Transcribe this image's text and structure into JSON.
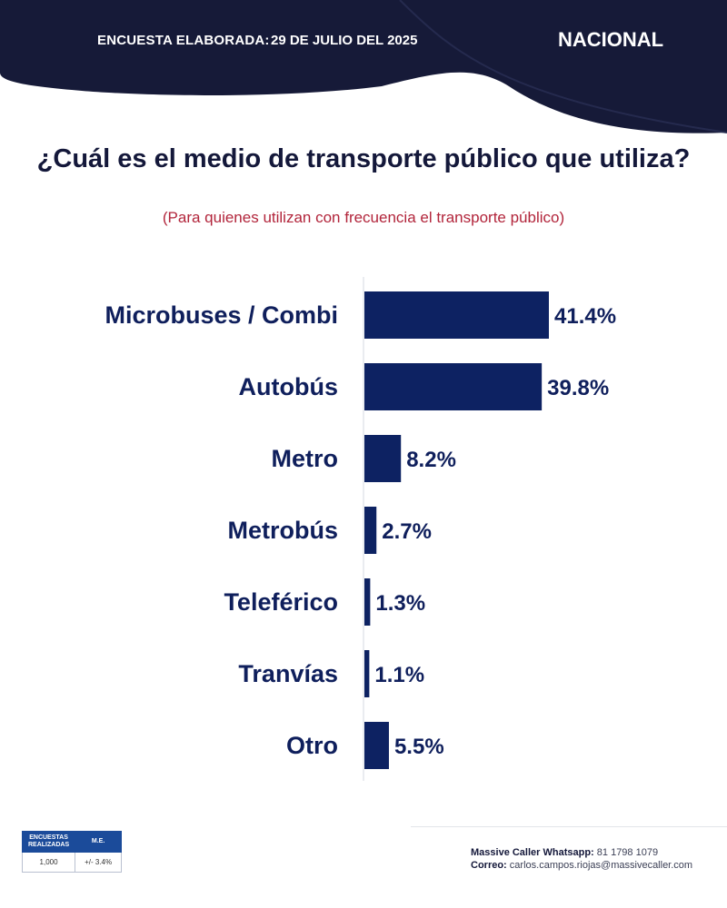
{
  "header": {
    "survey_label": "ENCUESTA ELABORADA:",
    "survey_date": "29 DE JULIO DEL 2025",
    "scope": "NACIONAL"
  },
  "question": {
    "title": "¿Cuál es el medio de transporte público que utiliza?",
    "subtitle": "(Para quienes utilizan con frecuencia el transporte público)"
  },
  "chart_data": {
    "type": "bar",
    "orientation": "horizontal",
    "title": "¿Cuál es el medio de transporte público que utiliza?",
    "categories": [
      "Microbuses / Combi",
      "Autobús",
      "Metro",
      "Metrobús",
      "Teleférico",
      "Tranvías",
      "Otro"
    ],
    "values": [
      41.4,
      39.8,
      8.2,
      2.7,
      1.3,
      1.1,
      5.5
    ],
    "value_labels": [
      "41.4%",
      "39.8%",
      "8.2%",
      "2.7%",
      "1.3%",
      "1.1%",
      "5.5%"
    ],
    "unit": "%",
    "xlim": [
      0,
      41.4
    ],
    "bar_color": "#0d2262"
  },
  "stats_table": {
    "headers": [
      "ENCUESTAS REALIZADAS",
      "M.E."
    ],
    "values": [
      "1,000",
      "+/- 3.4%"
    ]
  },
  "contact": {
    "whatsapp_label": "Massive Caller Whatsapp:",
    "whatsapp_value": "81 1798 1079",
    "email_label": "Correo:",
    "email_value": "carlos.campos.riojas@massivecaller.com"
  },
  "colors": {
    "navy": "#161a38",
    "bar": "#0d2262",
    "subtitle_red": "#b2253b",
    "table_header": "#1b4b9a"
  }
}
